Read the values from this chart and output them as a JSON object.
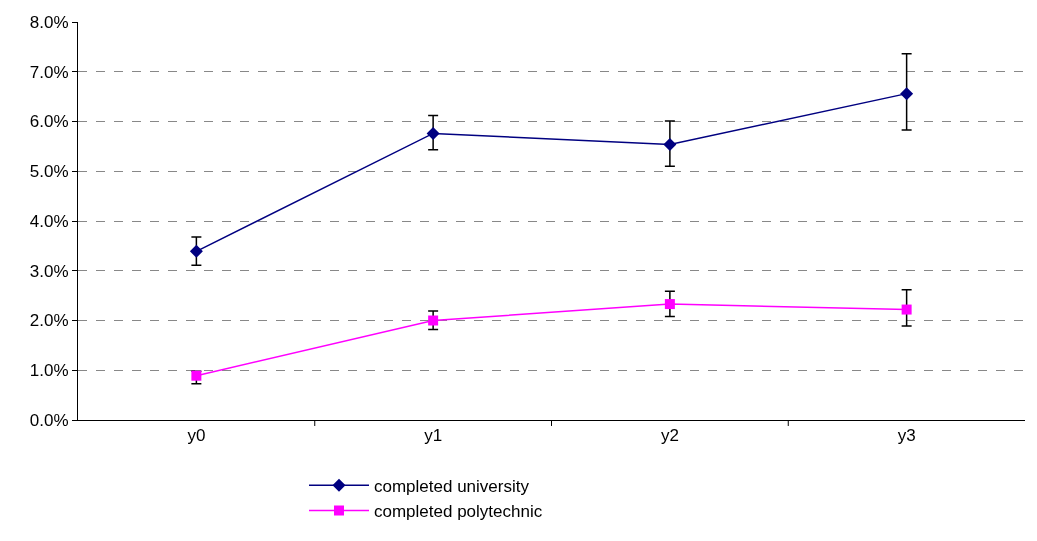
{
  "chart_data": {
    "type": "line",
    "categories": [
      "y0",
      "y1",
      "y2",
      "y3"
    ],
    "series": [
      {
        "name": "completed university",
        "color": "#000080",
        "marker": "diamond",
        "values": [
          3.39,
          5.76,
          5.54,
          6.56
        ],
        "errors": [
          [
            3.11,
            3.68
          ],
          [
            5.43,
            6.12
          ],
          [
            5.1,
            6.01
          ],
          [
            5.83,
            7.36
          ]
        ]
      },
      {
        "name": "completed polytechnic",
        "color": "#ff00ff",
        "marker": "square",
        "values": [
          0.89,
          2.0,
          2.33,
          2.22
        ],
        "errors": [
          [
            0.73,
            0.98
          ],
          [
            1.82,
            2.19
          ],
          [
            2.08,
            2.59
          ],
          [
            1.89,
            2.62
          ]
        ]
      }
    ],
    "ylim": [
      0,
      8
    ],
    "yticks": [
      {
        "value": 0,
        "label": "0.0%"
      },
      {
        "value": 1,
        "label": "1.0%"
      },
      {
        "value": 2,
        "label": "2.0%"
      },
      {
        "value": 3,
        "label": "3.0%"
      },
      {
        "value": 4,
        "label": "4.0%"
      },
      {
        "value": 5,
        "label": "5.0%"
      },
      {
        "value": 6,
        "label": "6.0%"
      },
      {
        "value": 7,
        "label": "7.0%"
      },
      {
        "value": 8,
        "label": "8.0%"
      }
    ],
    "grid": "y",
    "legend": "bottom",
    "line_style": "solid"
  }
}
